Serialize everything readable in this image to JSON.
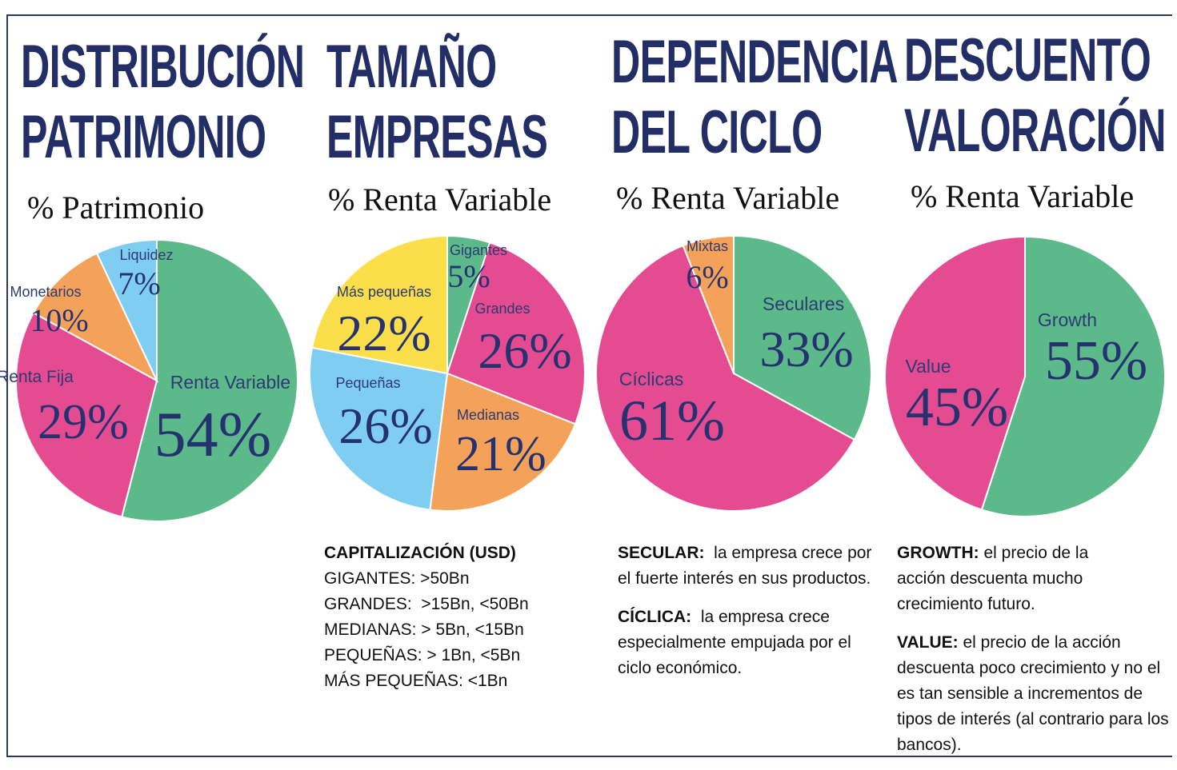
{
  "colors": {
    "title": "#232e66",
    "green": "#5cb989",
    "pink": "#e54b91",
    "orange": "#f4a259",
    "light_blue": "#7fcdf1",
    "yellow": "#fadf4a",
    "value_text": "#263270"
  },
  "columns": [
    {
      "title_line1": "DISTRIBUCIÓN",
      "title_line2": "PATRIMONIO",
      "subtitle": "% Patrimonio"
    },
    {
      "title_line1": "TAMAÑO",
      "title_line2": "EMPRESAS",
      "subtitle": "% Renta Variable",
      "notes": {
        "heading": "CAPITALIZACIÓN (USD)",
        "lines": [
          "GIGANTES: >50Bn",
          "GRANDES:  >15Bn, <50Bn",
          "MEDIANAS: > 5Bn, <15Bn",
          "PEQUEÑAS: > 1Bn, <5Bn",
          "MÁS PEQUEÑAS: <1Bn"
        ]
      }
    },
    {
      "title_line1": "DEPENDENCIA",
      "title_line2": "DEL CICLO",
      "subtitle": "% Renta Variable",
      "notes": {
        "p1_label": "SECULAR:",
        "p1_text": "la empresa crece por el fuerte interés en sus productos.",
        "p2_label": "CÍCLICA:",
        "p2_text": "la empresa crece especialmente empujada por el ciclo económico."
      }
    },
    {
      "title_line1": "DESCUENTO",
      "title_line2": "VALORACIÓN",
      "subtitle": "% Renta Variable",
      "notes": {
        "p1_label": "GROWTH:",
        "p1_text": "el precio de la acción descuenta mucho crecimiento futuro.",
        "p2_label": "VALUE:",
        "p2_text": "el precio de la acción descuenta poco crecimiento y no el es tan sensible a incrementos de tipos de interés (al contrario para los bancos)."
      }
    }
  ],
  "chart_data": [
    {
      "type": "pie",
      "title": "DISTRIBUCIÓN PATRIMONIO",
      "subtitle": "% Patrimonio",
      "categories": [
        "Renta Variable",
        "Renta Fija",
        "Monetarios",
        "Liquidez"
      ],
      "values": [
        54,
        29,
        10,
        7
      ],
      "value_labels": [
        "54%",
        "29%",
        "10%",
        "7%"
      ],
      "colors": [
        "#5cb989",
        "#e54b91",
        "#f4a259",
        "#7fcdf1"
      ]
    },
    {
      "type": "pie",
      "title": "TAMAÑO EMPRESAS",
      "subtitle": "% Renta Variable",
      "categories": [
        "Gigantes",
        "Grandes",
        "Medianas",
        "Pequeñas",
        "Más pequeñas"
      ],
      "values": [
        5,
        26,
        21,
        26,
        22
      ],
      "value_labels": [
        "5%",
        "26%",
        "21%",
        "26%",
        "22%"
      ],
      "colors": [
        "#5cb989",
        "#e54b91",
        "#f4a259",
        "#7fcdf1",
        "#fadf4a"
      ]
    },
    {
      "type": "pie",
      "title": "DEPENDENCIA DEL CICLO",
      "subtitle": "% Renta Variable",
      "categories": [
        "Seculares",
        "Cíclicas",
        "Mixtas"
      ],
      "values": [
        33,
        61,
        6
      ],
      "value_labels": [
        "33%",
        "61%",
        "6%"
      ],
      "colors": [
        "#5cb989",
        "#e54b91",
        "#f4a259"
      ]
    },
    {
      "type": "pie",
      "title": "DESCUENTO VALORACIÓN",
      "subtitle": "% Renta Variable",
      "categories": [
        "Growth",
        "Value"
      ],
      "values": [
        55,
        45
      ],
      "value_labels": [
        "55%",
        "45%"
      ],
      "colors": [
        "#5cb989",
        "#e54b91"
      ]
    }
  ]
}
